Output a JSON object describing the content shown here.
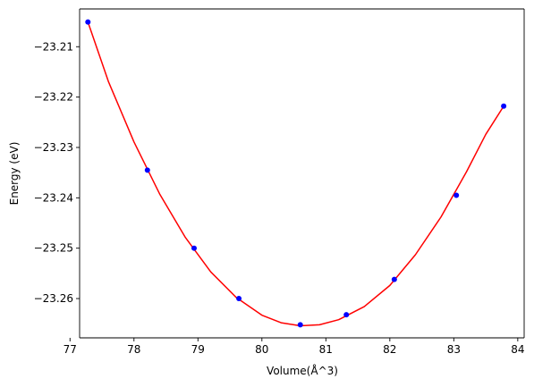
{
  "chart_data": {
    "type": "scatter",
    "title": "",
    "xlabel": "Volume(Å^3)",
    "ylabel": "Energy (eV)",
    "xlim": [
      77.15,
      84.1
    ],
    "ylim": [
      -23.2678,
      -23.2025
    ],
    "xticks": [
      77,
      78,
      79,
      80,
      81,
      82,
      83,
      84
    ],
    "xtick_labels": [
      "77",
      "78",
      "79",
      "80",
      "81",
      "82",
      "83",
      "84"
    ],
    "yticks": [
      -23.21,
      -23.22,
      -23.23,
      -23.24,
      -23.25,
      -23.26
    ],
    "ytick_labels": [
      "−23.21",
      "−23.22",
      "−23.23",
      "−23.24",
      "−23.25",
      "−23.26"
    ],
    "grid": false,
    "series": [
      {
        "kind": "points",
        "color": "#0000ff",
        "marker": "circle",
        "x": [
          77.28,
          78.21,
          78.94,
          79.64,
          80.6,
          81.32,
          82.07,
          83.04,
          83.78
        ],
        "y": [
          -23.2051,
          -23.2345,
          -23.25,
          -23.26,
          -23.2652,
          -23.2632,
          -23.2562,
          -23.2395,
          -23.2218
        ]
      },
      {
        "kind": "fit-curve",
        "color": "#ff0000",
        "x": [
          77.28,
          77.6,
          78.0,
          78.4,
          78.8,
          79.2,
          79.6,
          80.0,
          80.3,
          80.6,
          80.9,
          81.2,
          81.6,
          82.0,
          82.4,
          82.8,
          83.2,
          83.5,
          83.78
        ],
        "y": [
          -23.2051,
          -23.2169,
          -23.2289,
          -23.2392,
          -23.2478,
          -23.2547,
          -23.2598,
          -23.2633,
          -23.2648,
          -23.2654,
          -23.2652,
          -23.2642,
          -23.2616,
          -23.2574,
          -23.2513,
          -23.2438,
          -23.2348,
          -23.2274,
          -23.2218
        ]
      }
    ]
  }
}
